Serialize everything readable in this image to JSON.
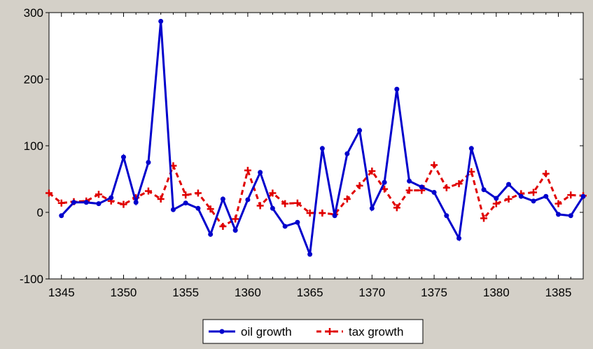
{
  "chart_data": {
    "type": "line",
    "title": "",
    "xlabel": "",
    "ylabel": "",
    "x": [
      1344,
      1345,
      1346,
      1347,
      1348,
      1349,
      1350,
      1351,
      1352,
      1353,
      1354,
      1355,
      1356,
      1357,
      1358,
      1359,
      1360,
      1361,
      1362,
      1363,
      1364,
      1365,
      1366,
      1367,
      1368,
      1369,
      1370,
      1371,
      1372,
      1373,
      1374,
      1375,
      1376,
      1377,
      1378,
      1379,
      1380,
      1381,
      1382,
      1383,
      1384,
      1385,
      1386,
      1387
    ],
    "xlim": [
      1344,
      1387
    ],
    "ylim": [
      -100,
      300
    ],
    "x_ticks": [
      1345,
      1350,
      1355,
      1360,
      1365,
      1370,
      1375,
      1380,
      1385
    ],
    "y_ticks": [
      -100,
      0,
      100,
      200,
      300
    ],
    "grid": false,
    "legend_position": "bottom-center",
    "series": [
      {
        "name": "oil growth",
        "color": "#0000cc",
        "style": "solid-with-dot-markers",
        "values": [
          null,
          -5,
          15,
          15,
          13,
          22,
          83,
          15,
          75,
          287,
          4,
          14,
          6,
          -33,
          20,
          -27,
          19,
          60,
          6,
          -21,
          -15,
          -63,
          96,
          -5,
          88,
          123,
          6,
          45,
          185,
          47,
          38,
          30,
          -5,
          -39,
          96,
          34,
          21,
          42,
          24,
          17,
          24,
          -3,
          -5,
          24
        ]
      },
      {
        "name": "tax growth",
        "color": "#e00000",
        "style": "dashed-with-plus-markers",
        "values": [
          29,
          14,
          16,
          17,
          27,
          17,
          12,
          22,
          32,
          20,
          70,
          26,
          29,
          5,
          -21,
          -10,
          63,
          10,
          29,
          13,
          14,
          -1,
          -1,
          -3,
          20,
          40,
          62,
          35,
          7,
          33,
          33,
          71,
          37,
          43,
          61,
          -9,
          13,
          20,
          28,
          30,
          58,
          13,
          26,
          25
        ]
      }
    ]
  }
}
